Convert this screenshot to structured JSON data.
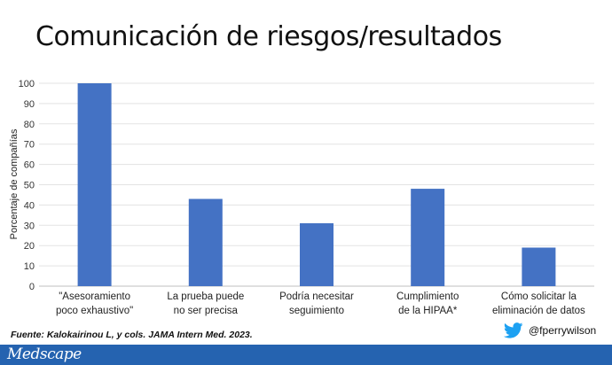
{
  "title": "Comunicación de riesgos/resultados",
  "source": "Fuente: Kalokairinou L, y cols. JAMA Intern Med. 2023.",
  "handle": "@fperrywilson",
  "brand": "Medscape",
  "colors": {
    "bar": "#4472c4",
    "footer": "#2563b0",
    "twitter": "#1da1f2"
  },
  "icons": [
    "twitter-icon"
  ],
  "chart_data": {
    "type": "bar",
    "categories": [
      [
        "\"Asesoramiento",
        "poco exhaustivo\""
      ],
      [
        "La prueba puede",
        "no ser precisa"
      ],
      [
        "Podría necesitar",
        "seguimiento"
      ],
      [
        "Cumplimiento",
        "de la HIPAA*"
      ],
      [
        "Cómo solicitar la",
        "eliminación de datos"
      ]
    ],
    "values": [
      100,
      43,
      31,
      48,
      19
    ],
    "title": "",
    "xlabel": "",
    "ylabel": "Porcentaje de compañías",
    "ylim": [
      0,
      100
    ],
    "yticks": [
      0,
      10,
      20,
      30,
      40,
      50,
      60,
      70,
      80,
      90,
      100
    ],
    "grid": true
  }
}
